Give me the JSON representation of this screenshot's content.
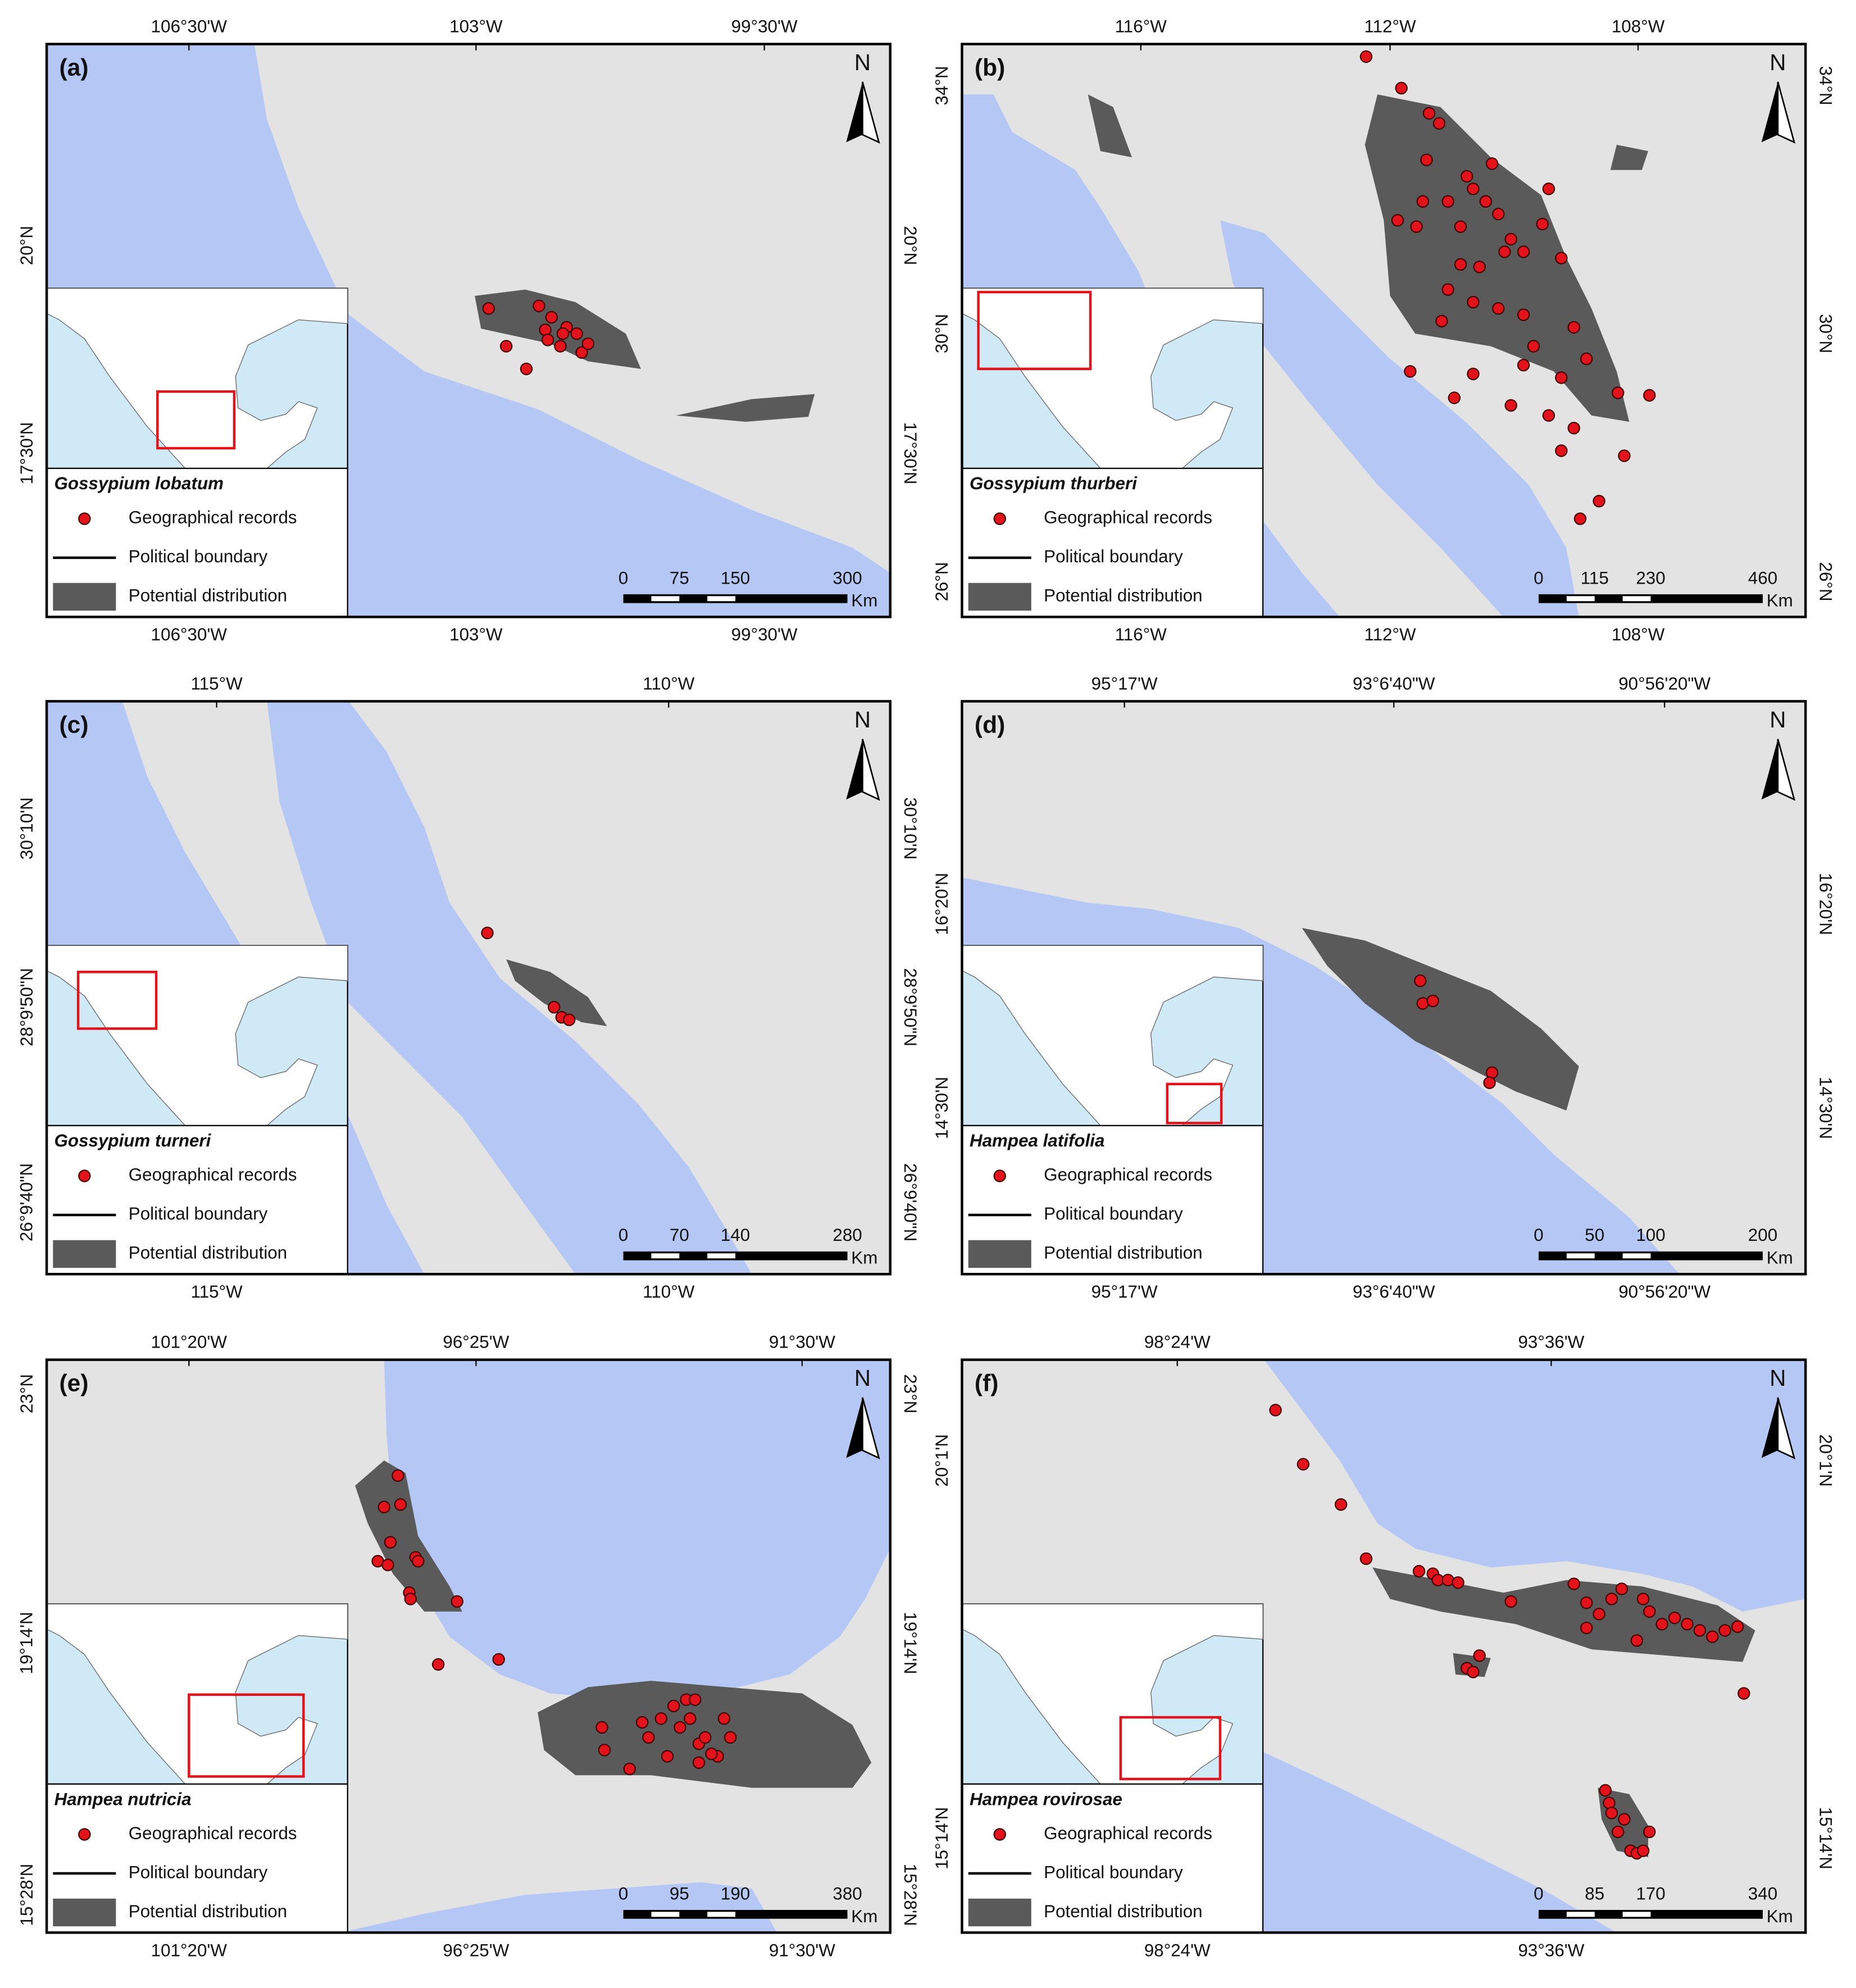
{
  "panels": [
    {
      "label": "(a)",
      "species": "Gossypium lobatum",
      "x_labels": [
        "106°30'W",
        "103°W",
        "99°30'W"
      ],
      "y_labels": [
        "20°N",
        "17°30'N"
      ],
      "scale": [
        0,
        75,
        150,
        300
      ],
      "scale_unit": "Km",
      "north": "N"
    },
    {
      "label": "(b)",
      "species": "Gossypium thurberi",
      "x_labels": [
        "116°W",
        "112°W",
        "108°W"
      ],
      "y_labels": [
        "34°N",
        "30°N",
        "26°N"
      ],
      "scale": [
        0,
        115,
        230,
        460
      ],
      "scale_unit": "Km",
      "north": "N"
    },
    {
      "label": "(c)",
      "species": "Gossypium turneri",
      "x_labels": [
        "115°W",
        "110°W"
      ],
      "y_labels": [
        "30°10'N",
        "28°9'50\"N",
        "26°9'40\"N"
      ],
      "scale": [
        0,
        70,
        140,
        280
      ],
      "scale_unit": "Km",
      "north": "N"
    },
    {
      "label": "(d)",
      "species": "Hampea latifolia",
      "x_labels": [
        "95°17'W",
        "93°6'40\"W",
        "90°56'20\"W"
      ],
      "y_labels": [
        "16°20'N",
        "14°30'N"
      ],
      "scale": [
        0,
        50,
        100,
        200
      ],
      "scale_unit": "Km",
      "north": "N"
    },
    {
      "label": "(e)",
      "species": "Hampea nutricia",
      "x_labels": [
        "101°20'W",
        "96°25'W",
        "91°30'W"
      ],
      "y_labels": [
        "23°N",
        "19°14'N",
        "15°28'N"
      ],
      "scale": [
        0,
        95,
        190,
        380
      ],
      "scale_unit": "Km",
      "north": "N"
    },
    {
      "label": "(f)",
      "species": "Hampea rovirosae",
      "x_labels": [
        "98°24'W",
        "93°36'W"
      ],
      "y_labels": [
        "20°1'N",
        "15°14'N"
      ],
      "scale": [
        0,
        85,
        170,
        340
      ],
      "scale_unit": "Km",
      "north": "N"
    }
  ],
  "legend": {
    "records": "Geographical records",
    "boundary": "Political boundary",
    "distribution": "Potential distribution"
  }
}
